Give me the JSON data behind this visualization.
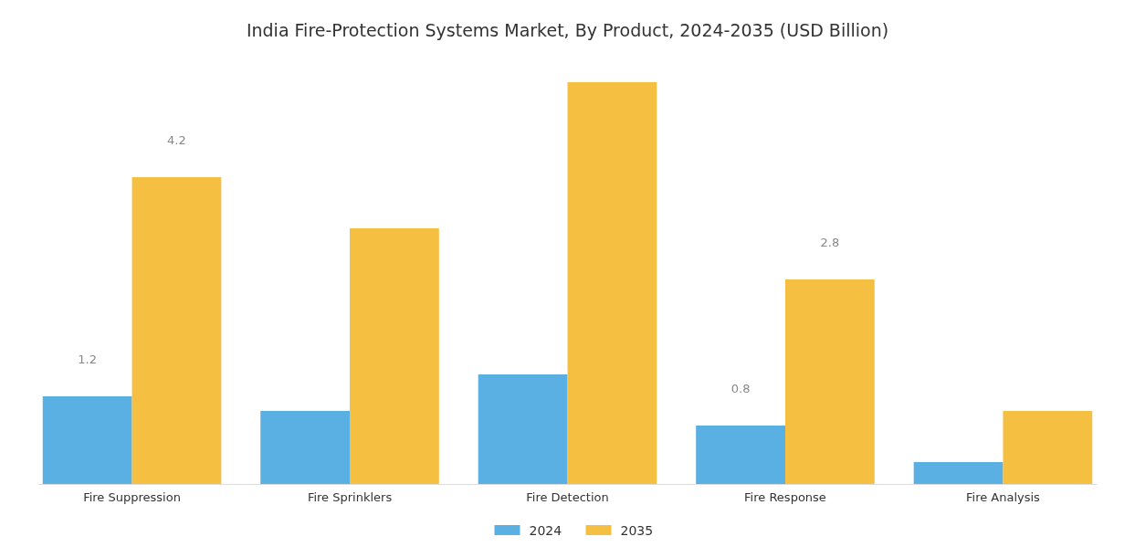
{
  "chart_data": {
    "type": "bar",
    "title": "India Fire-Protection Systems Market, By Product, 2024-2035 (USD Billion)",
    "categories": [
      "Fire Suppression",
      "Fire Sprinklers",
      "Fire Detection",
      "Fire Response",
      "Fire Analysis"
    ],
    "tick_labels": "x",
    "legend": "bottom",
    "grid": false,
    "series": [
      {
        "name": "2024",
        "color": "#5aafe3",
        "values": [
          1.2,
          1.0,
          1.5,
          0.8,
          0.3
        ],
        "value_labels": [
          "1.2",
          null,
          null,
          "0.8",
          null
        ]
      },
      {
        "name": "2035",
        "color": "#f5bf42",
        "values": [
          4.2,
          3.5,
          5.5,
          2.8,
          1.0
        ],
        "value_labels": [
          "4.2",
          null,
          null,
          "2.8",
          null
        ]
      }
    ]
  }
}
